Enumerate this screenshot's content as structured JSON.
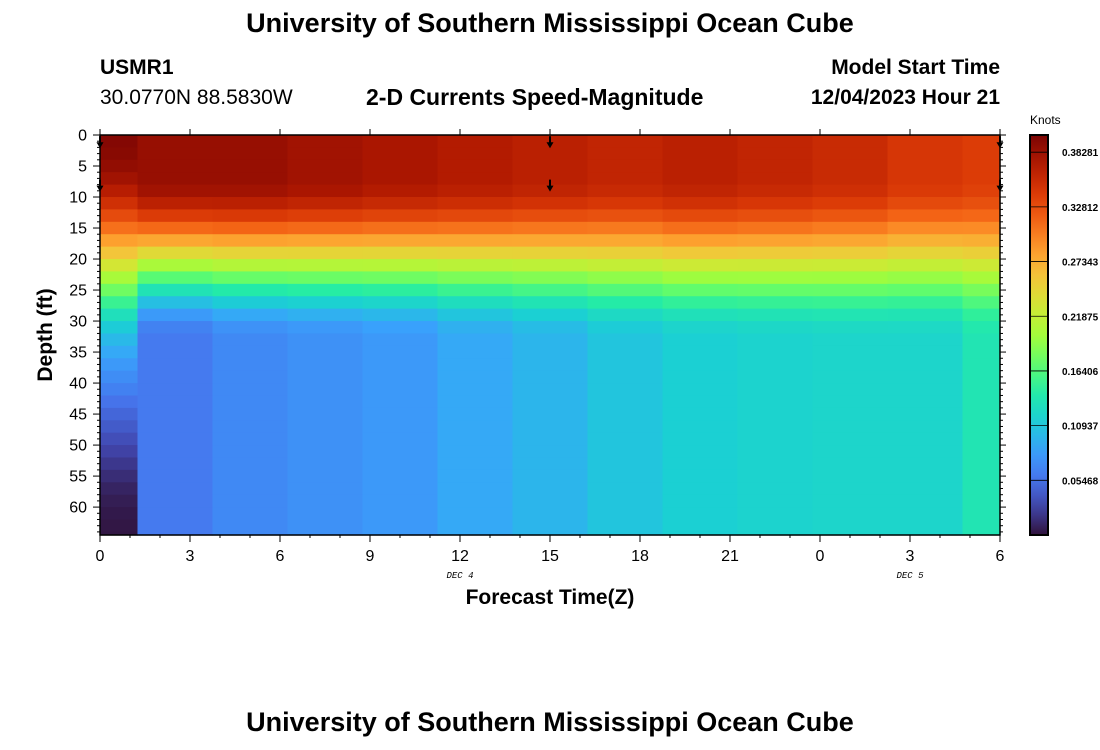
{
  "header": {
    "title": "University of Southern Mississippi Ocean Cube",
    "station_id": "USMR1",
    "coords": "30.0770N  88.5830W",
    "subtitle": "2-D Currents Speed-Magnitude",
    "model_start_label": "Model Start Time",
    "model_start_value": "12/04/2023 Hour 21"
  },
  "footer": {
    "title": "University of Southern Mississippi Ocean Cube"
  },
  "colors": {
    "colormap": [
      "#30123b",
      "#4145ab",
      "#4675ed",
      "#39a2fc",
      "#1bcfd4",
      "#24eca6",
      "#61fc6c",
      "#a4fc3b",
      "#d1e834",
      "#f3c63a",
      "#fe9b2d",
      "#f36315",
      "#d93806",
      "#b11901",
      "#7a0403"
    ]
  },
  "chart_data": {
    "type": "heatmap",
    "title": "2-D Currents Speed-Magnitude",
    "xlabel": "Forecast Time(Z)",
    "ylabel": "Depth (ft)",
    "x_tick_labels": [
      "0",
      "3",
      "6",
      "9",
      "12",
      "15",
      "18",
      "21",
      "0",
      "3",
      "6"
    ],
    "x_date_labels": [
      {
        "text": "DEC 4",
        "at_hour": 12
      },
      {
        "text": "DEC 5",
        "at_hour": 27
      }
    ],
    "xlim": [
      0,
      30
    ],
    "ylim": [
      0,
      64.5
    ],
    "y_ticks": [
      0,
      5,
      10,
      15,
      20,
      25,
      30,
      35,
      40,
      45,
      50,
      55,
      60
    ],
    "colorbar": {
      "label": "Knots",
      "range": [
        0,
        0.4
      ],
      "tick_values": [
        0.05468,
        0.10937,
        0.16406,
        0.21875,
        0.27343,
        0.32812,
        0.38281
      ],
      "tick_labels": [
        "0.05468",
        "0.10937",
        "0.16406",
        "0.21875",
        "0.27343",
        "0.32812",
        "0.38281"
      ]
    },
    "time_columns": [
      {
        "start": 0.0,
        "end": 1.25,
        "depth": [
          0,
          2,
          4,
          6,
          8,
          10,
          12,
          14,
          16,
          18,
          20,
          22,
          24,
          26,
          28,
          30,
          32,
          34,
          36,
          38,
          40,
          42,
          44,
          46,
          48,
          50,
          52,
          54,
          56,
          58,
          60,
          62,
          64.5
        ],
        "speed": [
          0.395,
          0.395,
          0.39,
          0.385,
          0.375,
          0.36,
          0.34,
          0.32,
          0.295,
          0.27,
          0.245,
          0.215,
          0.19,
          0.165,
          0.14,
          0.12,
          0.105,
          0.095,
          0.085,
          0.075,
          0.07,
          0.06,
          0.052,
          0.045,
          0.038,
          0.03,
          0.024,
          0.018,
          0.012,
          0.008,
          0.005,
          0.003,
          0.002
        ]
      },
      {
        "start": 1.25,
        "end": 3.75,
        "surface": 0.385,
        "bottom": 0.06
      },
      {
        "start": 3.75,
        "end": 6.25,
        "surface": 0.385,
        "bottom": 0.07
      },
      {
        "start": 6.25,
        "end": 8.75,
        "surface": 0.38,
        "bottom": 0.075
      },
      {
        "start": 8.75,
        "end": 11.25,
        "surface": 0.375,
        "bottom": 0.08
      },
      {
        "start": 11.25,
        "end": 13.75,
        "surface": 0.37,
        "bottom": 0.09
      },
      {
        "start": 13.75,
        "end": 16.25,
        "surface": 0.365,
        "bottom": 0.098
      },
      {
        "start": 16.25,
        "end": 18.75,
        "surface": 0.36,
        "bottom": 0.108
      },
      {
        "start": 18.75,
        "end": 21.25,
        "surface": 0.365,
        "bottom": 0.115
      },
      {
        "start": 21.25,
        "end": 23.75,
        "surface": 0.36,
        "bottom": 0.118
      },
      {
        "start": 23.75,
        "end": 26.25,
        "surface": 0.355,
        "bottom": 0.12
      },
      {
        "start": 26.25,
        "end": 28.75,
        "surface": 0.345,
        "bottom": 0.12
      },
      {
        "start": 28.75,
        "end": 30.0,
        "surface": 0.34,
        "bottom": 0.135
      }
    ],
    "vectors": [
      {
        "hour": 0,
        "depth": 1
      },
      {
        "hour": 0,
        "depth": 8
      },
      {
        "hour": 15,
        "depth": 1
      },
      {
        "hour": 15,
        "depth": 8
      },
      {
        "hour": 30,
        "depth": 1
      },
      {
        "hour": 30,
        "depth": 8
      }
    ]
  }
}
